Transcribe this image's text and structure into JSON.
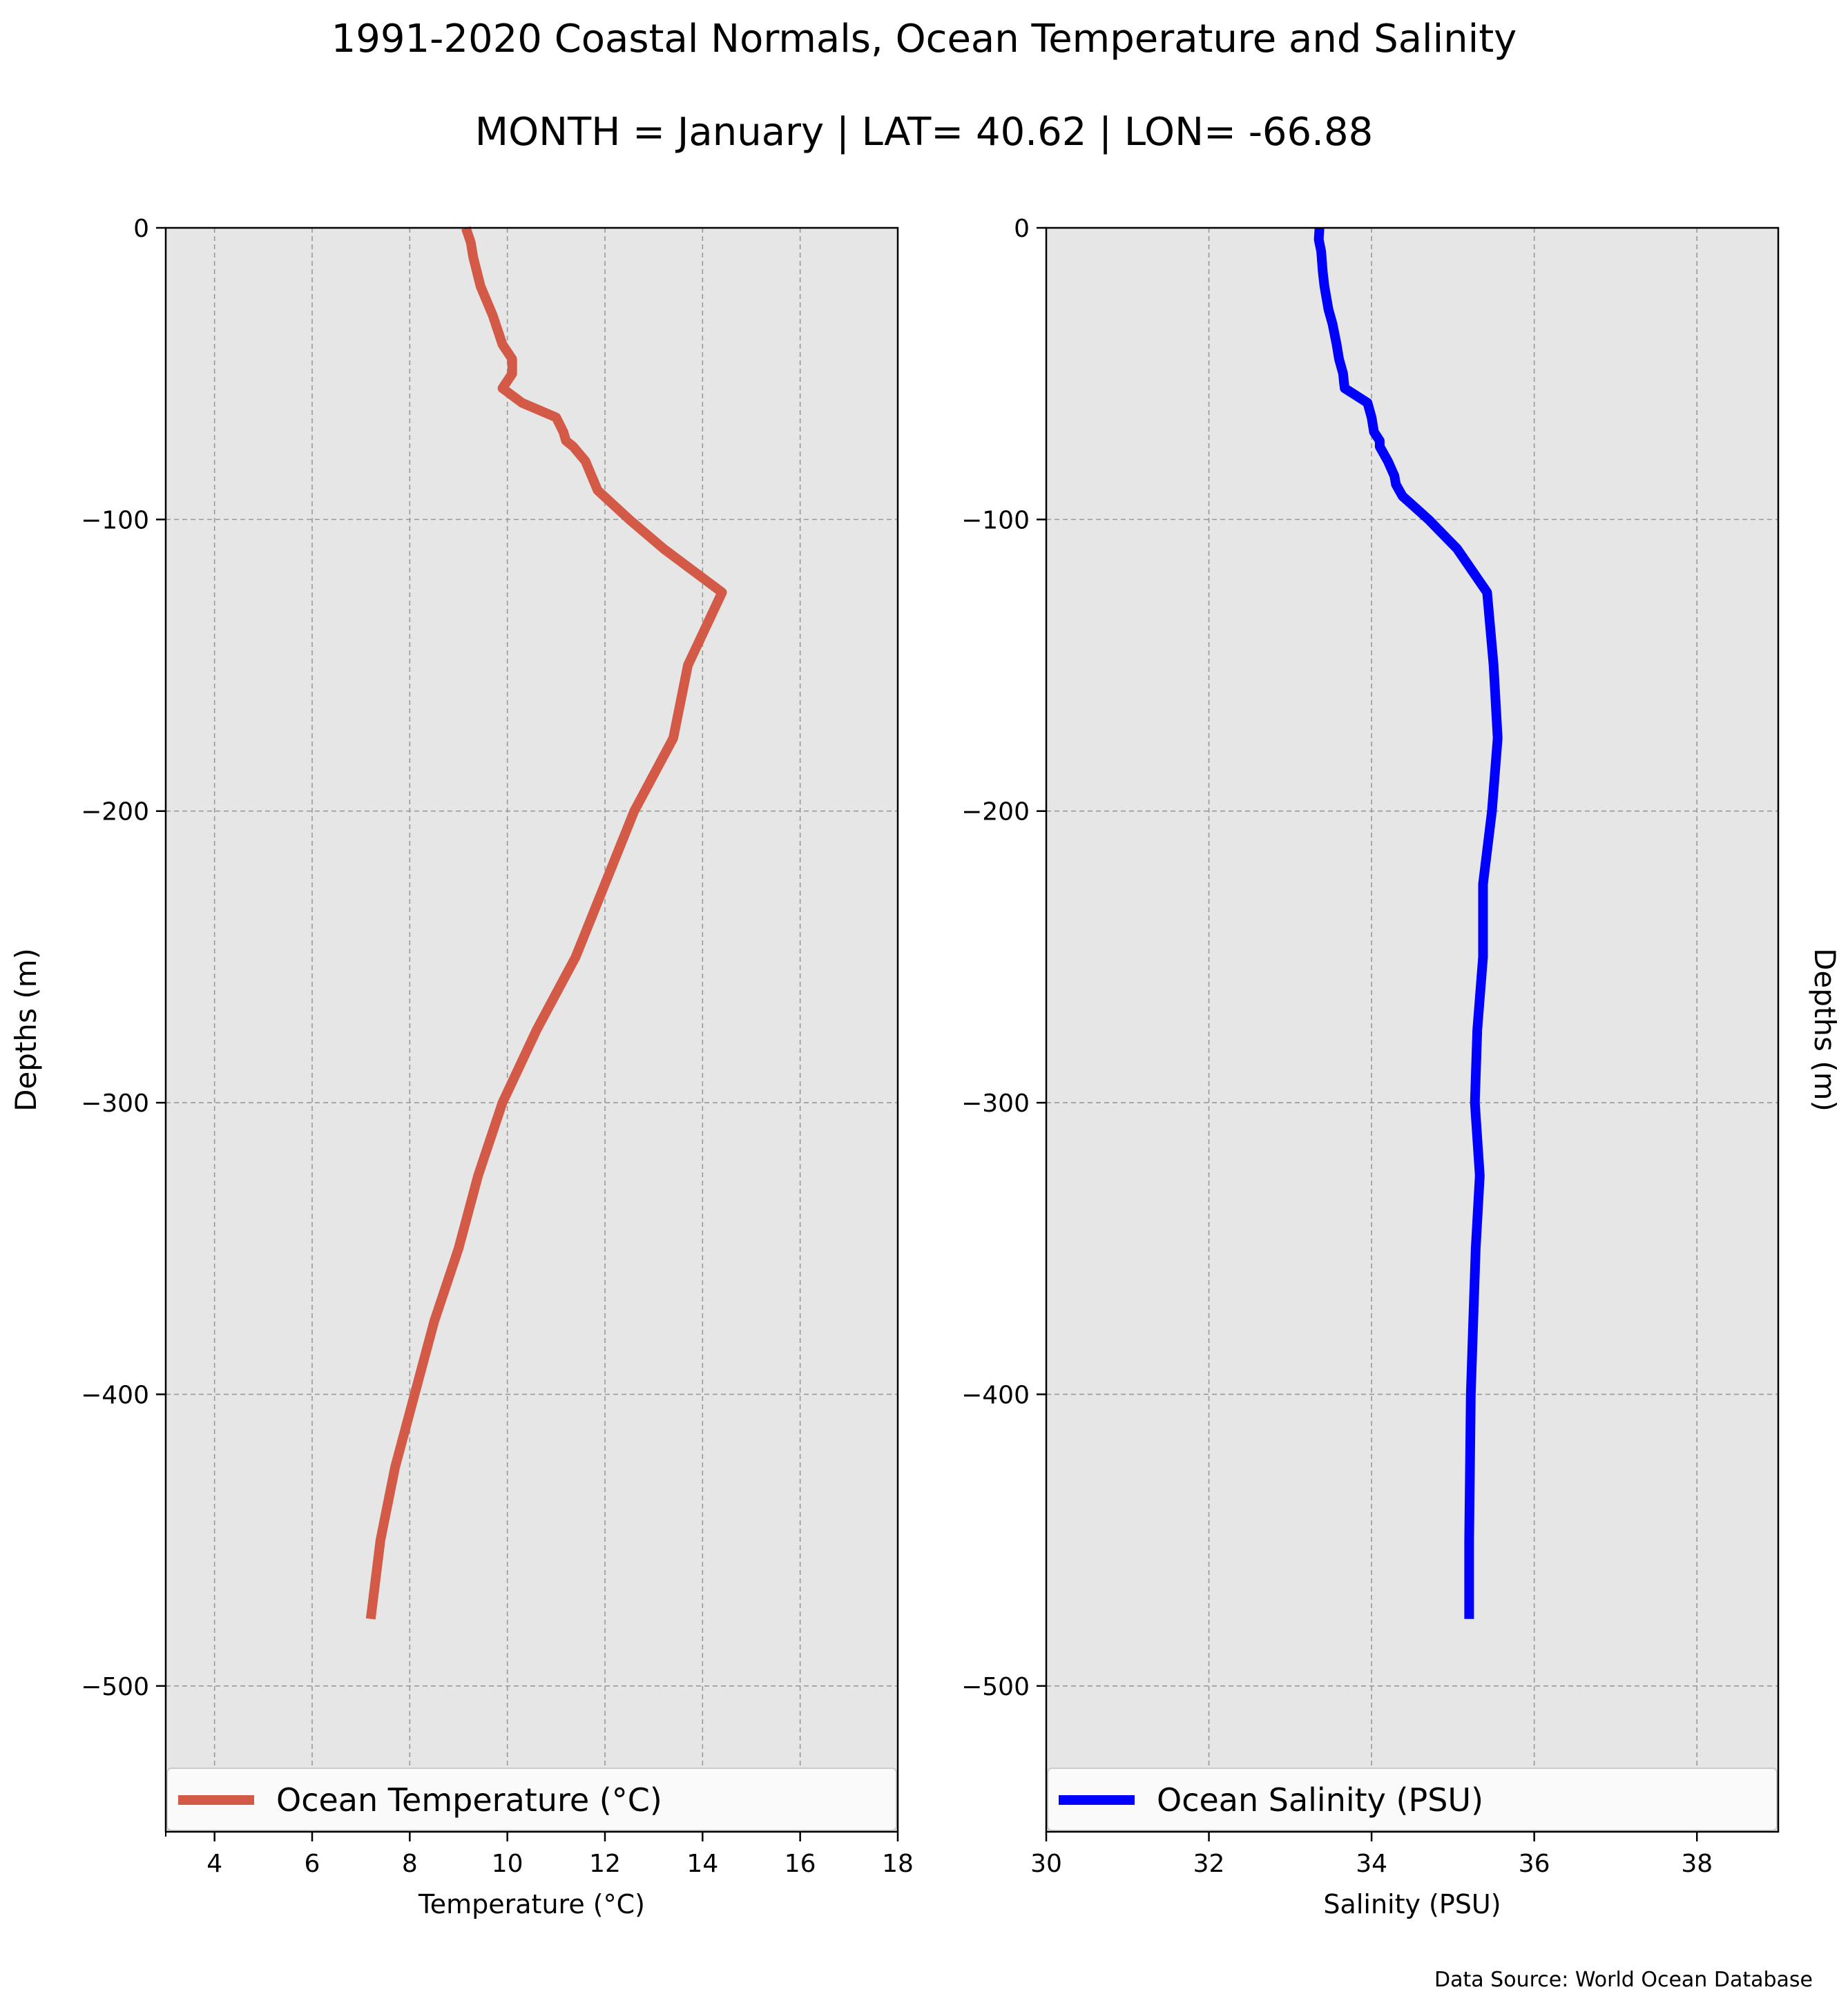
{
  "figure": {
    "title": "1991-2020 Coastal Normals, Ocean Temperature and Salinity",
    "subtitle": "MONTH = January | LAT= 40.62 | LON= -66.88",
    "source": "Data Source: World Ocean Database"
  },
  "chart_data": [
    {
      "type": "line",
      "xlabel": "Temperature (°C)",
      "ylabel": "Depths (m)",
      "xlim": [
        3,
        18
      ],
      "ylim": [
        -550,
        0
      ],
      "xticks": [
        4,
        6,
        8,
        10,
        12,
        14,
        16,
        18
      ],
      "xticks_minor": [
        3
      ],
      "yticks": [
        0,
        -100,
        -200,
        -300,
        -400,
        -500
      ],
      "grid": true,
      "legend_position": "lower",
      "color": "#d45a48",
      "series": [
        {
          "name": "Ocean Temperature (°C)",
          "x": [
            9.15,
            9.25,
            9.3,
            9.45,
            9.7,
            9.9,
            10.1,
            10.1,
            9.9,
            10.3,
            11.0,
            11.15,
            11.2,
            11.35,
            11.6,
            11.85,
            12.5,
            13.2,
            14.4,
            13.7,
            13.4,
            12.6,
            12.0,
            11.4,
            10.6,
            9.9,
            9.4,
            9.0,
            8.5,
            8.1,
            7.7,
            7.4,
            7.2
          ],
          "y": [
            0,
            -5,
            -10,
            -20,
            -30,
            -40,
            -45,
            -50,
            -55,
            -60,
            -65,
            -70,
            -73,
            -75,
            -80,
            -90,
            -100,
            -110,
            -125,
            -150,
            -175,
            -200,
            -225,
            -250,
            -275,
            -300,
            -325,
            -350,
            -375,
            -400,
            -425,
            -450,
            -477
          ]
        }
      ]
    },
    {
      "type": "line",
      "xlabel": "Salinity (PSU)",
      "ylabel": "Depths (m)",
      "xlim": [
        30,
        39
      ],
      "ylim": [
        -550,
        0
      ],
      "xticks": [
        30,
        32,
        34,
        36,
        38
      ],
      "yticks": [
        0,
        -100,
        -200,
        -300,
        -400,
        -500
      ],
      "grid": true,
      "legend_position": "lower",
      "color": "#0000ff",
      "series": [
        {
          "name": "Ocean Salinity (PSU)",
          "x": [
            33.36,
            33.35,
            33.38,
            33.4,
            33.42,
            33.47,
            33.52,
            33.57,
            33.6,
            33.65,
            33.66,
            33.67,
            33.95,
            34.0,
            34.03,
            34.1,
            34.1,
            34.2,
            34.28,
            34.3,
            34.38,
            34.5,
            34.7,
            35.05,
            35.42,
            35.5,
            35.55,
            35.48,
            35.37,
            35.37,
            35.3,
            35.27,
            35.33,
            35.28,
            35.25,
            35.22,
            35.2,
            35.2
          ],
          "y": [
            0,
            -4,
            -8,
            -15,
            -20,
            -28,
            -33,
            -40,
            -45,
            -50,
            -53,
            -55,
            -60,
            -65,
            -70,
            -73,
            -75,
            -80,
            -85,
            -88,
            -92,
            -95,
            -100,
            -110,
            -125,
            -150,
            -175,
            -200,
            -225,
            -250,
            -275,
            -300,
            -325,
            -350,
            -375,
            -400,
            -450,
            -477
          ]
        }
      ]
    }
  ]
}
